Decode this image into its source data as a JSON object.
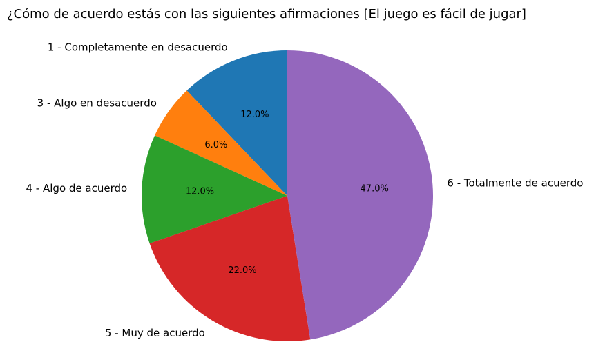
{
  "chart_data": {
    "type": "pie",
    "title": "¿Cómo de acuerdo estás con las siguientes afirmaciones [El juego es fácil de jugar]",
    "categories": [
      "1 - Completamente en desacuerdo",
      "3 - Algo en desacuerdo",
      "4 - Algo de acuerdo",
      "5 - Muy de acuerdo",
      "6 - Totalmente de acuerdo"
    ],
    "values": [
      12.0,
      6.0,
      12.0,
      22.0,
      47.0
    ],
    "percent_labels": [
      "12.0%",
      "6.0%",
      "12.0%",
      "22.0%",
      "47.0%"
    ],
    "colors": [
      "#1f77b4",
      "#ff7f0e",
      "#2ca02c",
      "#d62728",
      "#9467bd"
    ],
    "start_angle_deg": 90,
    "direction": "counterclockwise"
  }
}
